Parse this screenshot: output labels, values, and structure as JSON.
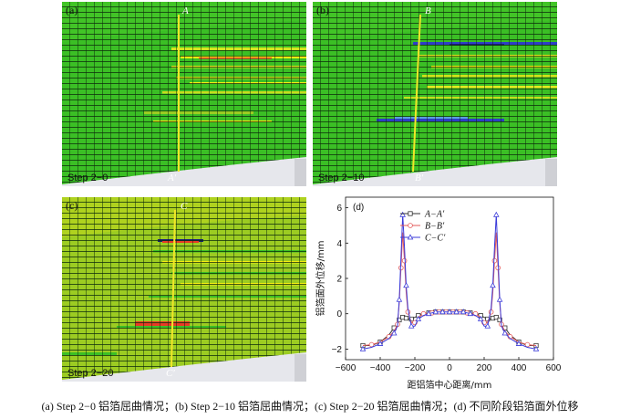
{
  "panels": [
    {
      "tag": "(a)",
      "step": "Step 2−0",
      "top_label": "A",
      "bottom_label": "A′"
    },
    {
      "tag": "(b)",
      "step": "Step 2−10",
      "top_label": "B",
      "bottom_label": "B′"
    },
    {
      "tag": "(c)",
      "step": "Step 2−20",
      "top_label": "C",
      "bottom_label": "C′"
    }
  ],
  "colors": {
    "mesh_green": "#3bbf25",
    "mesh_yellowgreen": "#9ccc22",
    "yellow": "#f4ec12",
    "red": "#e83a26",
    "blue": "#2e3ec8",
    "section_line": "#f2e628"
  },
  "chart_data": {
    "type": "line",
    "tag": "(d)",
    "xlabel": "距铝箔中心距离/mm",
    "ylabel": "铝箔面外位移/mm",
    "xlim": [
      -600,
      600
    ],
    "ylim": [
      -2.6,
      6.6
    ],
    "xticks": [
      -600,
      -400,
      -200,
      0,
      200,
      400,
      600
    ],
    "yticks": [
      -2,
      0,
      2,
      4,
      6
    ],
    "x": [
      -500,
      -450,
      -400,
      -350,
      -320,
      -300,
      -290,
      -280,
      -270,
      -260,
      -250,
      -240,
      -220,
      -200,
      -180,
      -150,
      -120,
      -100,
      -80,
      -60,
      -40,
      -20,
      0,
      20,
      40,
      60,
      80,
      100,
      120,
      150,
      180,
      200,
      220,
      240,
      250,
      260,
      270,
      280,
      290,
      300,
      320,
      350,
      400,
      450,
      500
    ],
    "series": [
      {
        "name": "A−A′",
        "color": "#333333",
        "marker": "square",
        "values": [
          -1.8,
          -1.8,
          -1.6,
          -1.2,
          -0.8,
          -0.5,
          -0.35,
          -0.25,
          -0.2,
          -0.2,
          -0.25,
          -0.3,
          -0.3,
          -0.2,
          -0.1,
          0.0,
          0.05,
          0.1,
          0.1,
          0.1,
          0.1,
          0.1,
          0.1,
          0.1,
          0.1,
          0.1,
          0.1,
          0.1,
          0.05,
          0.0,
          -0.1,
          -0.2,
          -0.3,
          -0.3,
          -0.25,
          -0.2,
          -0.2,
          -0.25,
          -0.35,
          -0.5,
          -0.8,
          -1.2,
          -1.6,
          -1.8,
          -1.8
        ]
      },
      {
        "name": "B−B′",
        "color": "#e35a5a",
        "marker": "circle",
        "values": [
          -1.8,
          -1.75,
          -1.6,
          -1.3,
          -1.0,
          -0.6,
          0.6,
          2.6,
          4.6,
          3.0,
          1.2,
          0.1,
          -0.5,
          -0.5,
          -0.2,
          0.0,
          0.0,
          0.05,
          0.1,
          0.1,
          0.1,
          0.1,
          0.15,
          0.1,
          0.1,
          0.1,
          0.1,
          0.05,
          0.0,
          0.0,
          -0.2,
          -0.5,
          -0.5,
          0.1,
          1.2,
          3.0,
          4.6,
          2.6,
          0.6,
          -0.6,
          -1.0,
          -1.3,
          -1.6,
          -1.75,
          -1.8
        ]
      },
      {
        "name": "C−C′",
        "color": "#3b3bd9",
        "marker": "triangle",
        "values": [
          -2.0,
          -1.9,
          -1.7,
          -1.4,
          -1.1,
          -0.7,
          0.8,
          3.2,
          5.6,
          3.8,
          1.6,
          0.3,
          -0.7,
          -0.7,
          -0.3,
          -0.1,
          0.0,
          0.05,
          0.1,
          0.1,
          0.1,
          0.1,
          0.1,
          0.1,
          0.1,
          0.1,
          0.1,
          0.05,
          0.0,
          -0.1,
          -0.3,
          -0.7,
          -0.7,
          0.3,
          1.6,
          3.8,
          5.6,
          3.2,
          0.8,
          -0.7,
          -1.1,
          -1.4,
          -1.7,
          -1.9,
          -2.0
        ]
      }
    ]
  },
  "caption": "(a) Step 2−0 铝箔屈曲情况；(b) Step 2−10 铝箔屈曲情况；(c) Step 2−20 铝箔屈曲情况；(d) 不同阶段铝箔面外位移"
}
